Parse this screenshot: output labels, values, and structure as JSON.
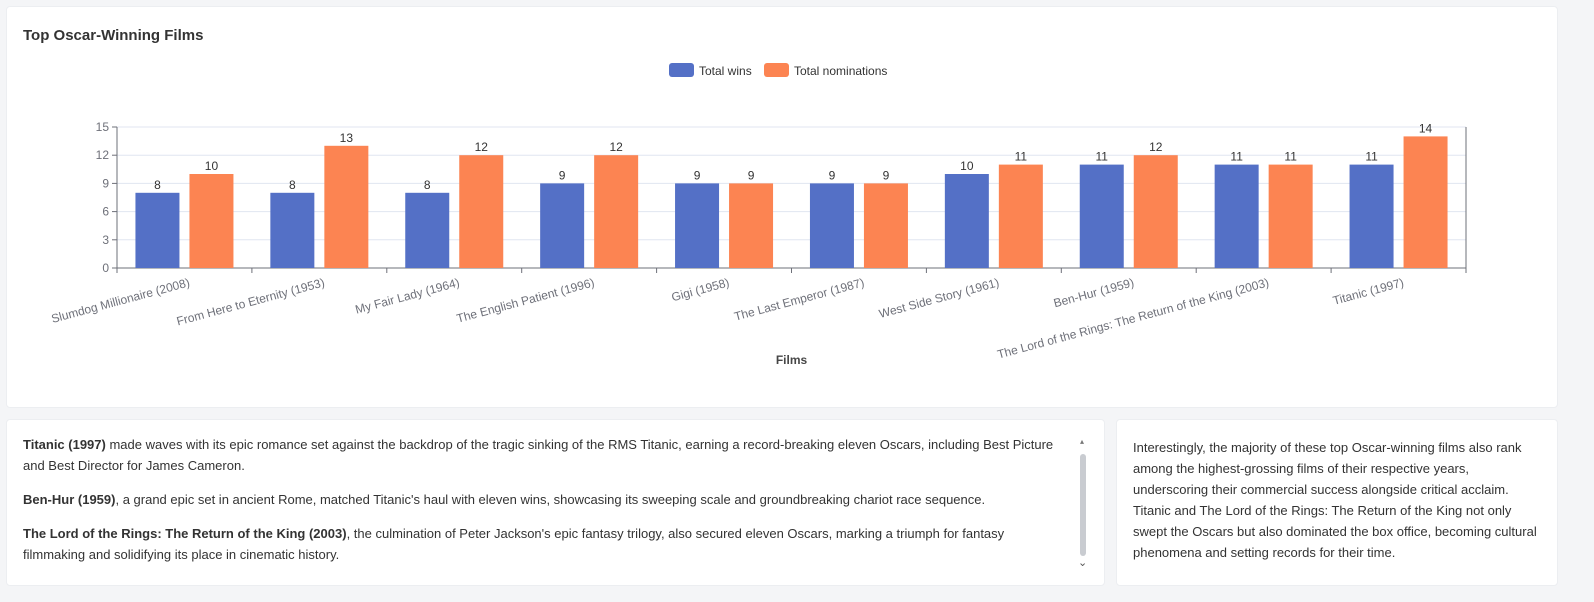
{
  "chart": {
    "title": "Top Oscar-Winning Films"
  },
  "chart_data": {
    "type": "bar",
    "title": "Top Oscar-Winning Films",
    "xlabel": "Films",
    "ylabel": "",
    "ylim": [
      0,
      15
    ],
    "yticks": [
      0,
      3,
      6,
      9,
      12,
      15
    ],
    "grid": true,
    "legend_position": "top-center",
    "categories": [
      "Slumdog Millionaire (2008)",
      "From Here to Eternity (1953)",
      "My Fair Lady (1964)",
      "The English Patient (1996)",
      "Gigi (1958)",
      "The Last Emperor (1987)",
      "West Side Story (1961)",
      "Ben-Hur (1959)",
      "The Lord of the Rings: The Return of the King (2003)",
      "Titanic (1997)"
    ],
    "series": [
      {
        "name": "Total wins",
        "color": "#5470c6",
        "values": [
          8,
          8,
          8,
          9,
          9,
          9,
          10,
          11,
          11,
          11
        ]
      },
      {
        "name": "Total nominations",
        "color": "#fc8452",
        "values": [
          10,
          13,
          12,
          12,
          9,
          9,
          11,
          12,
          11,
          14
        ]
      }
    ]
  },
  "text_left": {
    "paragraphs": [
      {
        "bold": "Titanic (1997)",
        "rest": " made waves with its epic romance set against the backdrop of the tragic sinking of the RMS Titanic, earning a record-breaking eleven Oscars, including Best Picture and Best Director for James Cameron."
      },
      {
        "bold": "Ben-Hur (1959)",
        "rest": ", a grand epic set in ancient Rome, matched Titanic's haul with eleven wins, showcasing its sweeping scale and groundbreaking chariot race sequence."
      },
      {
        "bold": "The Lord of the Rings: The Return of the King (2003)",
        "rest": ", the culmination of Peter Jackson's epic fantasy trilogy, also secured eleven Oscars, marking a triumph for fantasy filmmaking and solidifying its place in cinematic history."
      }
    ]
  },
  "text_right": {
    "body": "Interestingly, the majority of these top Oscar-winning films also rank among the highest-grossing films of their respective years, underscoring their commercial success alongside critical acclaim. Titanic and The Lord of the Rings: The Return of the King not only swept the Oscars but also dominated the box office, becoming cultural phenomena and setting records for their time."
  }
}
